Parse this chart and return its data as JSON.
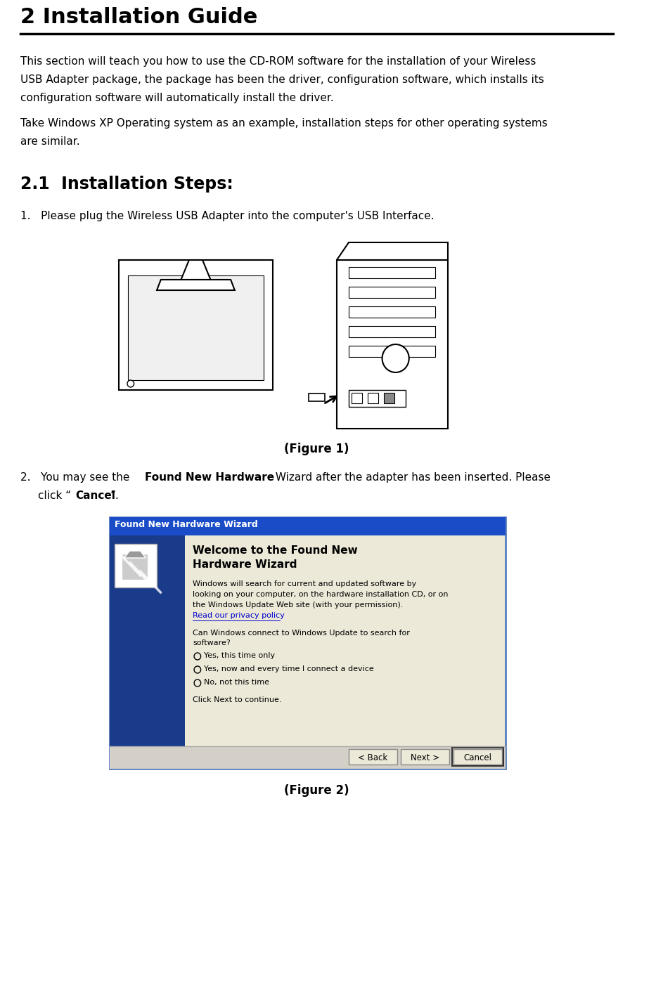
{
  "title": "2 Installation Guide",
  "bg_color": "#ffffff",
  "text_color": "#000000",
  "para1_lines": [
    "This section will teach you how to use the CD-ROM software for the installation of your Wireless",
    "USB Adapter package, the package has been the driver, configuration software, which installs its",
    "configuration software will automatically install the driver."
  ],
  "para2_lines": [
    "Take Windows XP Operating system as an example, installation steps for other operating systems",
    "are similar."
  ],
  "section_title": "2.1  Installation Steps:",
  "step1": "1.   Please plug the Wireless USB Adapter into the computer's USB Interface.",
  "figure1_caption": "(Figure 1)",
  "step2_part1": "2.   You may see the ",
  "step2_bold1": "Found New Hardware",
  "step2_part2": " Wizard after the adapter has been inserted. Please",
  "step2_line2a": "click “",
  "step2_bold2": "Cancel",
  "step2_line2b": "”.",
  "figure2_caption": "(Figure 2)",
  "wizard_title": "Found New Hardware Wizard",
  "wizard_title_bg": "#1a4cc8",
  "wizard_title_text_color": "#ffffff",
  "wizard_body_bg": "#ece9d8",
  "wizard_blue_panel_color": "#1a3a8a",
  "wizard_heading1": "Welcome to the Found New",
  "wizard_heading2": "Hardware Wizard",
  "wizard_body_lines": [
    "Windows will search for current and updated software by",
    "looking on your computer, on the hardware installation CD, or on",
    "the Windows Update Web site (with your permission)."
  ],
  "wizard_privacy": "Read our privacy policy",
  "wizard_privacy_color": "#0000cc",
  "wizard_question1": "Can Windows connect to Windows Update to search for",
  "wizard_question2": "software?",
  "wizard_radio1": "Yes, this time only",
  "wizard_radio2": "Yes, now and every time I connect a device",
  "wizard_radio3": "No, not this time",
  "wizard_bottom_text": "Click Next to continue.",
  "wizard_btn_back": "< Back",
  "wizard_btn_next": "Next >",
  "wizard_btn_cancel": "Cancel",
  "wizard_border_color": "#5a7fc0",
  "wizard_btn_bg": "#ece9d8",
  "wizard_btn_area_bg": "#d4d0c8"
}
